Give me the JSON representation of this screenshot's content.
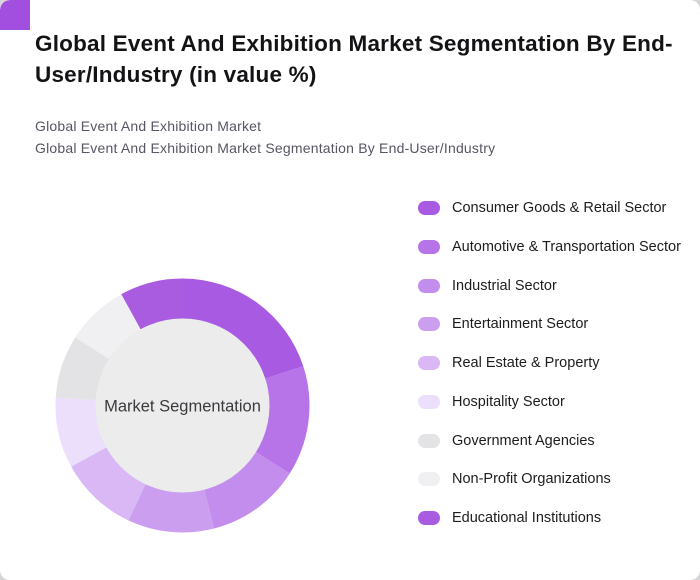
{
  "page": {
    "title": "Global Event And Exhibition Market Segmentation By End-User/Industry (in value %)",
    "subtitle1": "Global Event And Exhibition Market",
    "subtitle2": "Global Event And Exhibition Market Segmentation By End-User/Industry"
  },
  "colors": {
    "accent": "#a24fdf",
    "card_background": "#ffffff",
    "center_circle": "#ececec",
    "center_text": "#3a3a3e"
  },
  "chart_data": {
    "type": "pie",
    "subtype": "donut",
    "title": "Global Event And Exhibition Market Segmentation By End-User/Industry (in value %)",
    "center_label": "Market Segmentation",
    "legend_position": "right",
    "data_labels_shown": false,
    "start_angle_deg": 0,
    "direction": "clockwise",
    "series": [
      {
        "label": "Consumer Goods & Retail Sector",
        "value": 20,
        "color": "#a95ae3"
      },
      {
        "label": "Automotive & Transportation Sector",
        "value": 14,
        "color": "#b674e8"
      },
      {
        "label": "Industrial Sector",
        "value": 12,
        "color": "#c28dec"
      },
      {
        "label": "Entertainment Sector",
        "value": 11,
        "color": "#cb9ef0"
      },
      {
        "label": "Real Estate & Property",
        "value": 10,
        "color": "#d9b8f5"
      },
      {
        "label": "Hospitality Sector",
        "value": 9,
        "color": "#ecdffb"
      },
      {
        "label": "Government Agencies",
        "value": 8,
        "color": "#e3e3e5"
      },
      {
        "label": "Non-Profit Organizations",
        "value": 8,
        "color": "#f0eff2"
      },
      {
        "label": "Educational Institutions",
        "value": 8,
        "color": "#aa5ce1"
      }
    ]
  }
}
